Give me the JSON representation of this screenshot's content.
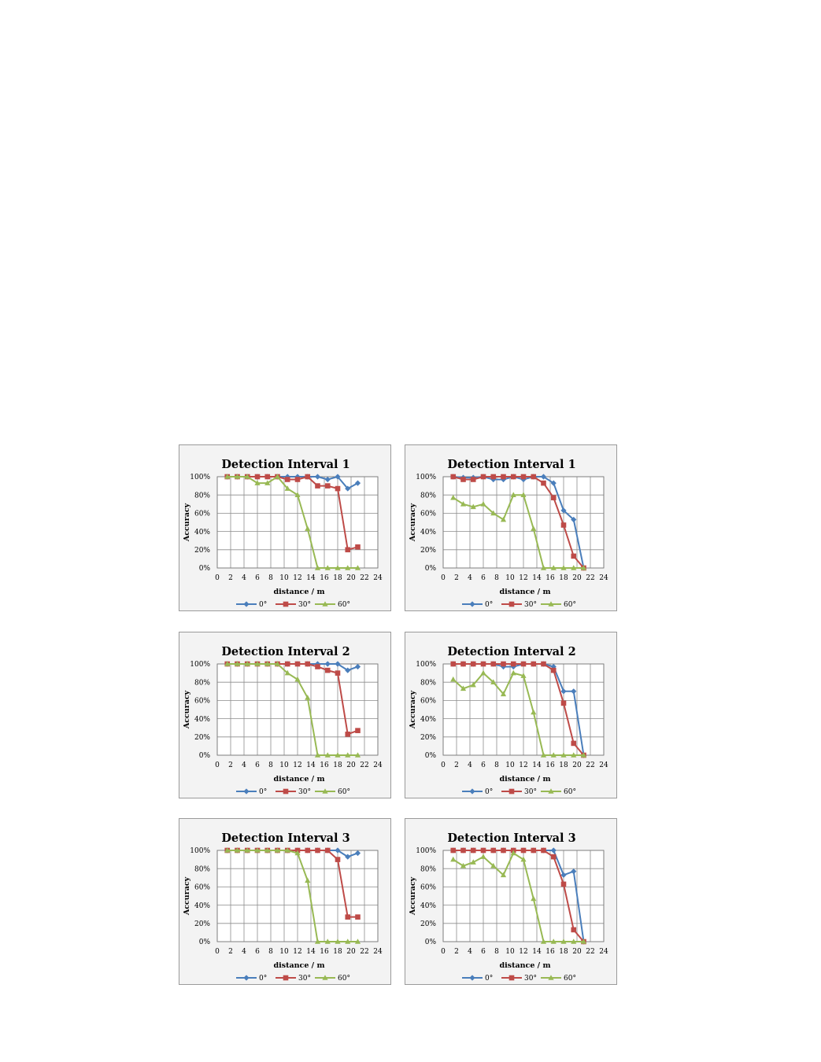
{
  "chart_data": [
    {
      "type": "line",
      "title": "Detection Interval 1",
      "xlabel": "distance / m",
      "ylabel": "Accuracy",
      "xlim": [
        0,
        24
      ],
      "ylim": [
        0,
        100
      ],
      "xticks": [
        "0",
        "2",
        "4",
        "6",
        "8",
        "10",
        "12",
        "14",
        "16",
        "18",
        "20",
        "22",
        "24"
      ],
      "yticks": [
        "0%",
        "20%",
        "40%",
        "60%",
        "80%",
        "100%"
      ],
      "grid": true,
      "legend": "bottom",
      "series": [
        {
          "name": "0°",
          "color": "#4a7ebb",
          "marker": "diamond",
          "x": [
            1.5,
            3,
            4.5,
            6,
            7.5,
            9,
            10.5,
            12,
            13.5,
            15,
            16.5,
            18,
            19.5,
            21
          ],
          "y": [
            100,
            100,
            100,
            100,
            100,
            100,
            100,
            100,
            100,
            100,
            97,
            100,
            87,
            93
          ]
        },
        {
          "name": "30°",
          "color": "#be4b48",
          "marker": "square",
          "x": [
            1.5,
            3,
            4.5,
            6,
            7.5,
            9,
            10.5,
            12,
            13.5,
            15,
            16.5,
            18,
            19.5,
            21
          ],
          "y": [
            100,
            100,
            100,
            100,
            100,
            100,
            97,
            97,
            100,
            90,
            90,
            87,
            20,
            23
          ]
        },
        {
          "name": "60°",
          "color": "#98b954",
          "marker": "triangle",
          "x": [
            1.5,
            3,
            4.5,
            6,
            7.5,
            9,
            10.5,
            12,
            13.5,
            15,
            16.5,
            18,
            19.5,
            21
          ],
          "y": [
            100,
            100,
            100,
            93,
            93,
            100,
            87,
            80,
            43,
            0,
            0,
            0,
            0,
            0
          ]
        }
      ]
    },
    {
      "type": "line",
      "title": "Detection Interval 1",
      "xlabel": "distance / m",
      "ylabel": "Accuracy",
      "xlim": [
        0,
        24
      ],
      "ylim": [
        0,
        100
      ],
      "xticks": [
        "0",
        "2",
        "4",
        "6",
        "8",
        "10",
        "12",
        "14",
        "16",
        "18",
        "20",
        "22",
        "24"
      ],
      "yticks": [
        "0%",
        "20%",
        "40%",
        "60%",
        "80%",
        "100%"
      ],
      "grid": true,
      "legend": "bottom",
      "series": [
        {
          "name": "0°",
          "color": "#4a7ebb",
          "marker": "diamond",
          "x": [
            1.5,
            3,
            4.5,
            6,
            7.5,
            9,
            10.5,
            12,
            13.5,
            15,
            16.5,
            18,
            19.5,
            21
          ],
          "y": [
            100,
            99,
            99,
            100,
            97,
            97,
            100,
            97,
            100,
            100,
            93,
            63,
            53,
            0
          ]
        },
        {
          "name": "30°",
          "color": "#be4b48",
          "marker": "square",
          "x": [
            1.5,
            3,
            4.5,
            6,
            7.5,
            9,
            10.5,
            12,
            13.5,
            15,
            16.5,
            18,
            19.5,
            21
          ],
          "y": [
            100,
            97,
            97,
            100,
            100,
            100,
            100,
            100,
            100,
            93,
            77,
            47,
            13,
            0
          ]
        },
        {
          "name": "60°",
          "color": "#98b954",
          "marker": "triangle",
          "x": [
            1.5,
            3,
            4.5,
            6,
            7.5,
            9,
            10.5,
            12,
            13.5,
            15,
            16.5,
            18,
            19.5,
            21
          ],
          "y": [
            77,
            70,
            67,
            70,
            60,
            53,
            80,
            80,
            43,
            0,
            0,
            0,
            0,
            0
          ]
        }
      ]
    },
    {
      "type": "line",
      "title": "Detection Interval 2",
      "xlabel": "distance / m",
      "ylabel": "Accuracy",
      "xlim": [
        0,
        24
      ],
      "ylim": [
        0,
        100
      ],
      "xticks": [
        "0",
        "2",
        "4",
        "6",
        "8",
        "10",
        "12",
        "14",
        "16",
        "18",
        "20",
        "22",
        "24"
      ],
      "yticks": [
        "0%",
        "20%",
        "40%",
        "60%",
        "80%",
        "100%"
      ],
      "grid": true,
      "legend": "bottom",
      "series": [
        {
          "name": "0°",
          "color": "#4a7ebb",
          "marker": "diamond",
          "x": [
            1.5,
            3,
            4.5,
            6,
            7.5,
            9,
            10.5,
            12,
            13.5,
            15,
            16.5,
            18,
            19.5,
            21
          ],
          "y": [
            100,
            100,
            100,
            100,
            100,
            100,
            100,
            100,
            100,
            100,
            100,
            100,
            93,
            97
          ]
        },
        {
          "name": "30°",
          "color": "#be4b48",
          "marker": "square",
          "x": [
            1.5,
            3,
            4.5,
            6,
            7.5,
            9,
            10.5,
            12,
            13.5,
            15,
            16.5,
            18,
            19.5,
            21
          ],
          "y": [
            100,
            100,
            100,
            100,
            100,
            100,
            100,
            100,
            100,
            97,
            93,
            90,
            23,
            27
          ]
        },
        {
          "name": "60°",
          "color": "#98b954",
          "marker": "triangle",
          "x": [
            1.5,
            3,
            4.5,
            6,
            7.5,
            9,
            10.5,
            12,
            13.5,
            15,
            16.5,
            18,
            19.5,
            21
          ],
          "y": [
            100,
            100,
            100,
            100,
            100,
            100,
            90,
            83,
            63,
            0,
            0,
            0,
            0,
            0
          ]
        }
      ]
    },
    {
      "type": "line",
      "title": "Detection Interval 2",
      "xlabel": "distance / m",
      "ylabel": "Accuracy",
      "xlim": [
        0,
        24
      ],
      "ylim": [
        0,
        100
      ],
      "xticks": [
        "0",
        "2",
        "4",
        "6",
        "8",
        "10",
        "12",
        "14",
        "16",
        "18",
        "20",
        "22",
        "24"
      ],
      "yticks": [
        "0%",
        "20%",
        "40%",
        "60%",
        "80%",
        "100%"
      ],
      "grid": true,
      "legend": "bottom",
      "series": [
        {
          "name": "0°",
          "color": "#4a7ebb",
          "marker": "diamond",
          "x": [
            1.5,
            3,
            4.5,
            6,
            7.5,
            9,
            10.5,
            12,
            13.5,
            15,
            16.5,
            18,
            19.5,
            21
          ],
          "y": [
            100,
            100,
            100,
            100,
            100,
            97,
            97,
            100,
            100,
            100,
            97,
            70,
            70,
            0
          ]
        },
        {
          "name": "30°",
          "color": "#be4b48",
          "marker": "square",
          "x": [
            1.5,
            3,
            4.5,
            6,
            7.5,
            9,
            10.5,
            12,
            13.5,
            15,
            16.5,
            18,
            19.5,
            21
          ],
          "y": [
            100,
            100,
            100,
            100,
            100,
            100,
            100,
            100,
            100,
            100,
            93,
            57,
            13,
            0
          ]
        },
        {
          "name": "60°",
          "color": "#98b954",
          "marker": "triangle",
          "x": [
            1.5,
            3,
            4.5,
            6,
            7.5,
            9,
            10.5,
            12,
            13.5,
            15,
            16.5,
            18,
            19.5,
            21
          ],
          "y": [
            83,
            73,
            77,
            90,
            80,
            67,
            90,
            87,
            47,
            0,
            0,
            0,
            0,
            0
          ]
        }
      ]
    },
    {
      "type": "line",
      "title": "Detection Interval 3",
      "xlabel": "distance / m",
      "ylabel": "Accuracy",
      "xlim": [
        0,
        24
      ],
      "ylim": [
        0,
        100
      ],
      "xticks": [
        "0",
        "2",
        "4",
        "6",
        "8",
        "10",
        "12",
        "14",
        "16",
        "18",
        "20",
        "22",
        "24"
      ],
      "yticks": [
        "0%",
        "20%",
        "40%",
        "60%",
        "80%",
        "100%"
      ],
      "grid": true,
      "legend": "bottom",
      "series": [
        {
          "name": "0°",
          "color": "#4a7ebb",
          "marker": "diamond",
          "x": [
            1.5,
            3,
            4.5,
            6,
            7.5,
            9,
            10.5,
            12,
            13.5,
            15,
            16.5,
            18,
            19.5,
            21
          ],
          "y": [
            100,
            100,
            100,
            100,
            100,
            100,
            100,
            100,
            100,
            100,
            100,
            100,
            93,
            97
          ]
        },
        {
          "name": "30°",
          "color": "#be4b48",
          "marker": "square",
          "x": [
            1.5,
            3,
            4.5,
            6,
            7.5,
            9,
            10.5,
            12,
            13.5,
            15,
            16.5,
            18,
            19.5,
            21
          ],
          "y": [
            100,
            100,
            100,
            100,
            100,
            100,
            100,
            100,
            100,
            100,
            100,
            90,
            27,
            27
          ]
        },
        {
          "name": "60°",
          "color": "#98b954",
          "marker": "triangle",
          "x": [
            1.5,
            3,
            4.5,
            6,
            7.5,
            9,
            10.5,
            12,
            13.5,
            15,
            16.5,
            18,
            19.5,
            21
          ],
          "y": [
            100,
            100,
            100,
            100,
            100,
            100,
            100,
            97,
            67,
            0,
            0,
            0,
            0,
            0
          ]
        }
      ]
    },
    {
      "type": "line",
      "title": "Detection Interval 3",
      "xlabel": "distance / m",
      "ylabel": "Accuracy",
      "xlim": [
        0,
        24
      ],
      "ylim": [
        0,
        100
      ],
      "xticks": [
        "0",
        "2",
        "4",
        "6",
        "8",
        "10",
        "12",
        "14",
        "16",
        "18",
        "20",
        "22",
        "24"
      ],
      "yticks": [
        "0%",
        "20%",
        "40%",
        "60%",
        "80%",
        "100%"
      ],
      "grid": true,
      "legend": "bottom",
      "series": [
        {
          "name": "0°",
          "color": "#4a7ebb",
          "marker": "diamond",
          "x": [
            1.5,
            3,
            4.5,
            6,
            7.5,
            9,
            10.5,
            12,
            13.5,
            15,
            16.5,
            18,
            19.5,
            21
          ],
          "y": [
            100,
            100,
            100,
            100,
            100,
            100,
            100,
            100,
            100,
            100,
            100,
            73,
            77,
            0
          ]
        },
        {
          "name": "30°",
          "color": "#be4b48",
          "marker": "square",
          "x": [
            1.5,
            3,
            4.5,
            6,
            7.5,
            9,
            10.5,
            12,
            13.5,
            15,
            16.5,
            18,
            19.5,
            21
          ],
          "y": [
            100,
            100,
            100,
            100,
            100,
            100,
            100,
            100,
            100,
            100,
            93,
            63,
            13,
            0
          ]
        },
        {
          "name": "60°",
          "color": "#98b954",
          "marker": "triangle",
          "x": [
            1.5,
            3,
            4.5,
            6,
            7.5,
            9,
            10.5,
            12,
            13.5,
            15,
            16.5,
            18,
            19.5,
            21
          ],
          "y": [
            90,
            83,
            87,
            93,
            83,
            73,
            97,
            90,
            47,
            0,
            0,
            0,
            0,
            0
          ]
        }
      ]
    }
  ]
}
